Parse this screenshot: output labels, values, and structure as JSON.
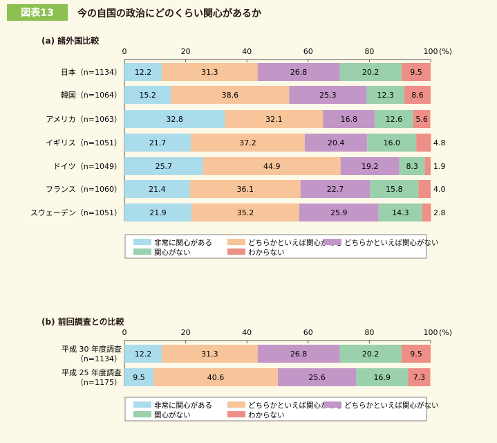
{
  "header": {
    "badge": "図表13",
    "title": "今の自国の政治にどのくらい関心があるか"
  },
  "colors": {
    "very_interested": "#abdcec",
    "somewhat_interested": "#f8c49a",
    "not_very_interested": "#c396c8",
    "not_interested": "#9bd0ad",
    "dont_know": "#ee8f87"
  },
  "legend_items": [
    "非常に関心がある",
    "どちらかといえば関心がある",
    "どちらかといえば関心がない",
    "関心がない",
    "わからない"
  ],
  "chart_data": [
    {
      "type": "bar",
      "orientation": "horizontal",
      "stacked": true,
      "title": "(a) 諸外国比較",
      "unit": "(%)",
      "xlim": [
        0,
        100
      ],
      "ticks": [
        "0",
        "20",
        "40",
        "60",
        "80",
        "100"
      ],
      "categories": [
        "日本（n=1134）",
        "韓国（n=1064）",
        "アメリカ（n=1063）",
        "イギリス（n=1051）",
        "ドイツ（n=1049）",
        "フランス（n=1060）",
        "スウェーデン（n=1051）"
      ],
      "series": [
        {
          "name": "非常に関心がある",
          "values": [
            12.2,
            15.2,
            32.8,
            21.7,
            25.7,
            21.4,
            21.9
          ]
        },
        {
          "name": "どちらかといえば関心がある",
          "values": [
            31.3,
            38.6,
            32.1,
            37.2,
            44.9,
            36.1,
            35.2
          ]
        },
        {
          "name": "どちらかといえば関心がない",
          "values": [
            26.8,
            25.3,
            16.8,
            20.4,
            19.2,
            22.7,
            25.9
          ]
        },
        {
          "name": "関心がない",
          "values": [
            20.2,
            12.3,
            12.6,
            16.0,
            8.3,
            15.8,
            14.3
          ]
        },
        {
          "name": "わからない",
          "values": [
            9.5,
            8.6,
            5.6,
            4.8,
            1.9,
            4.0,
            2.8
          ]
        }
      ]
    },
    {
      "type": "bar",
      "orientation": "horizontal",
      "stacked": true,
      "title": "(b) 前回調査との比較",
      "unit": "(%)",
      "xlim": [
        0,
        100
      ],
      "ticks": [
        "0",
        "20",
        "40",
        "60",
        "80",
        "100"
      ],
      "categories": [
        [
          "平成 30 年度調査",
          "（n=1134）"
        ],
        [
          "平成 25 年度調査",
          "（n=1175）"
        ]
      ],
      "series": [
        {
          "name": "非常に関心がある",
          "values": [
            12.2,
            9.5
          ]
        },
        {
          "name": "どちらかといえば関心がある",
          "values": [
            31.3,
            40.6
          ]
        },
        {
          "name": "どちらかといえば関心がない",
          "values": [
            26.8,
            25.6
          ]
        },
        {
          "name": "関心がない",
          "values": [
            20.2,
            16.9
          ]
        },
        {
          "name": "わからない",
          "values": [
            9.5,
            7.3
          ]
        }
      ]
    }
  ]
}
